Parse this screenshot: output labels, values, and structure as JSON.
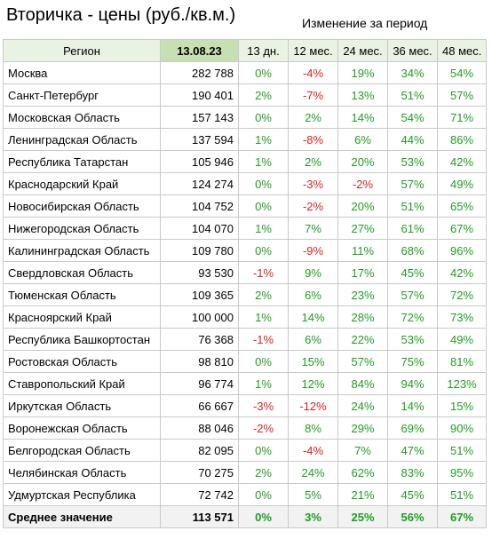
{
  "title": "Вторичка - цены (руб./кв.м.)",
  "period_label": "Изменение за период",
  "colors": {
    "positive": "#1f9e1f",
    "negative": "#e02020",
    "header_bg": "#eaf2e3",
    "date_header_bg": "#c7e0b2"
  },
  "headers": {
    "region": "Регион",
    "date": "13.08.23",
    "d13": "13 дн.",
    "m12": "12 мес.",
    "m24": "24 мес.",
    "m36": "36 мес.",
    "m48": "48 мес."
  },
  "rows": [
    {
      "region": "Москва",
      "price": "282 788",
      "d13": "0%",
      "m12": "-4%",
      "m24": "19%",
      "m36": "34%",
      "m48": "54%"
    },
    {
      "region": "Санкт-Петербург",
      "price": "190 401",
      "d13": "2%",
      "m12": "-7%",
      "m24": "13%",
      "m36": "51%",
      "m48": "57%"
    },
    {
      "region": "Московская Область",
      "price": "157 143",
      "d13": "0%",
      "m12": "2%",
      "m24": "14%",
      "m36": "54%",
      "m48": "71%"
    },
    {
      "region": "Ленинградская Область",
      "price": "137 594",
      "d13": "1%",
      "m12": "-8%",
      "m24": "6%",
      "m36": "44%",
      "m48": "86%"
    },
    {
      "region": "Республика Татарстан",
      "price": "105 946",
      "d13": "1%",
      "m12": "2%",
      "m24": "20%",
      "m36": "53%",
      "m48": "42%"
    },
    {
      "region": "Краснодарский Край",
      "price": "124 274",
      "d13": "0%",
      "m12": "-3%",
      "m24": "-2%",
      "m36": "57%",
      "m48": "49%"
    },
    {
      "region": "Новосибирская Область",
      "price": "104 752",
      "d13": "0%",
      "m12": "-2%",
      "m24": "20%",
      "m36": "51%",
      "m48": "65%"
    },
    {
      "region": "Нижегородская Область",
      "price": "104 070",
      "d13": "1%",
      "m12": "7%",
      "m24": "27%",
      "m36": "61%",
      "m48": "67%"
    },
    {
      "region": "Калининградская Область",
      "price": "109 780",
      "d13": "0%",
      "m12": "-9%",
      "m24": "11%",
      "m36": "68%",
      "m48": "96%"
    },
    {
      "region": "Свердловская Область",
      "price": "93 530",
      "d13": "-1%",
      "m12": "9%",
      "m24": "17%",
      "m36": "45%",
      "m48": "42%"
    },
    {
      "region": "Тюменская Область",
      "price": "109 365",
      "d13": "2%",
      "m12": "6%",
      "m24": "23%",
      "m36": "57%",
      "m48": "72%"
    },
    {
      "region": "Красноярский Край",
      "price": "100 000",
      "d13": "1%",
      "m12": "14%",
      "m24": "28%",
      "m36": "72%",
      "m48": "73%"
    },
    {
      "region": "Республика Башкортостан",
      "price": "76 368",
      "d13": "-1%",
      "m12": "6%",
      "m24": "22%",
      "m36": "53%",
      "m48": "49%"
    },
    {
      "region": "Ростовская Область",
      "price": "98 810",
      "d13": "0%",
      "m12": "15%",
      "m24": "57%",
      "m36": "75%",
      "m48": "81%"
    },
    {
      "region": "Ставропольский Край",
      "price": "96 774",
      "d13": "1%",
      "m12": "12%",
      "m24": "84%",
      "m36": "94%",
      "m48": "123%"
    },
    {
      "region": "Иркутская Область",
      "price": "66 667",
      "d13": "-3%",
      "m12": "-12%",
      "m24": "24%",
      "m36": "14%",
      "m48": "15%"
    },
    {
      "region": "Воронежская Область",
      "price": "88 046",
      "d13": "-2%",
      "m12": "8%",
      "m24": "29%",
      "m36": "69%",
      "m48": "90%"
    },
    {
      "region": "Белгородская Область",
      "price": "82 095",
      "d13": "0%",
      "m12": "-4%",
      "m24": "7%",
      "m36": "47%",
      "m48": "51%"
    },
    {
      "region": "Челябинская Область",
      "price": "70 275",
      "d13": "2%",
      "m12": "24%",
      "m24": "62%",
      "m36": "83%",
      "m48": "95%"
    },
    {
      "region": "Удмуртская Республика",
      "price": "72 742",
      "d13": "0%",
      "m12": "5%",
      "m24": "21%",
      "m36": "45%",
      "m48": "51%"
    }
  ],
  "average": {
    "region": "Среднее значение",
    "price": "113 571",
    "d13": "0%",
    "m12": "3%",
    "m24": "25%",
    "m36": "56%",
    "m48": "67%"
  }
}
